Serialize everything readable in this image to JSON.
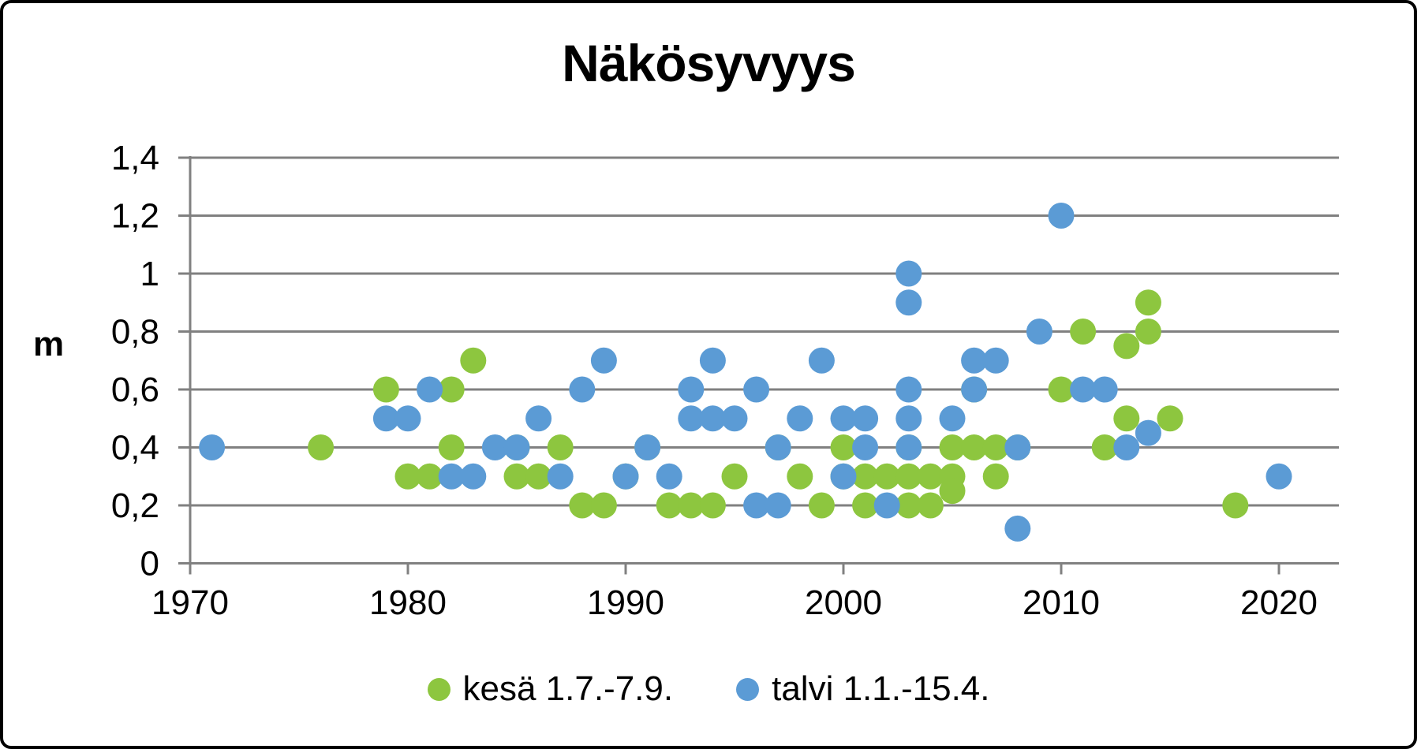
{
  "title": "Näkösyvyys",
  "y_axis": {
    "label": "m",
    "tick_labels": [
      "1,4",
      "1,2",
      "1",
      "0,8",
      "0,6",
      "0,4",
      "0,2",
      "0"
    ],
    "tick_values": [
      1.4,
      1.2,
      1.0,
      0.8,
      0.6,
      0.4,
      0.2,
      0
    ]
  },
  "x_axis": {
    "tick_labels": [
      "1970",
      "1980",
      "1990",
      "2000",
      "2010",
      "2020"
    ],
    "tick_values": [
      1970,
      1980,
      1990,
      2000,
      2010,
      2020
    ]
  },
  "legend": {
    "items": [
      {
        "label": "kesä 1.7.-7.9.",
        "color": "#8DC63F"
      },
      {
        "label": "talvi 1.1.-15.4.",
        "color": "#5B9BD5"
      }
    ]
  },
  "colors": {
    "summer": "#8DC63F",
    "winter": "#5B9BD5",
    "gridline": "#808080",
    "text": "#000000",
    "background": "#ffffff"
  },
  "chart_data": {
    "type": "scatter",
    "title": "Näkösyvyys",
    "xlabel": "",
    "ylabel": "m",
    "xlim": [
      1969,
      2023
    ],
    "ylim": [
      0,
      1.4
    ],
    "grid": "horizontal",
    "legend_position": "bottom",
    "series": [
      {
        "name": "kesä 1.7.-7.9.",
        "color": "#8DC63F",
        "points": [
          [
            1976,
            0.4
          ],
          [
            1979,
            0.6
          ],
          [
            1980,
            0.3
          ],
          [
            1981,
            0.3
          ],
          [
            1982,
            0.4
          ],
          [
            1982,
            0.6
          ],
          [
            1983,
            0.7
          ],
          [
            1985,
            0.4
          ],
          [
            1985,
            0.3
          ],
          [
            1986,
            0.3
          ],
          [
            1987,
            0.4
          ],
          [
            1988,
            0.2
          ],
          [
            1989,
            0.2
          ],
          [
            1990,
            0.3
          ],
          [
            1991,
            0.4
          ],
          [
            1992,
            0.2
          ],
          [
            1993,
            0.2
          ],
          [
            1994,
            0.2
          ],
          [
            1995,
            0.3
          ],
          [
            1997,
            0.4
          ],
          [
            1998,
            0.3
          ],
          [
            1999,
            0.2
          ],
          [
            2000,
            0.4
          ],
          [
            2000,
            0.3
          ],
          [
            2001,
            0.3
          ],
          [
            2001,
            0.2
          ],
          [
            2002,
            0.3
          ],
          [
            2003,
            0.4
          ],
          [
            2003,
            0.3
          ],
          [
            2003,
            0.2
          ],
          [
            2004,
            0.3
          ],
          [
            2004,
            0.2
          ],
          [
            2005,
            0.4
          ],
          [
            2005,
            0.3
          ],
          [
            2005,
            0.25
          ],
          [
            2006,
            0.4
          ],
          [
            2006,
            0.6
          ],
          [
            2007,
            0.4
          ],
          [
            2007,
            0.3
          ],
          [
            2008,
            0.4
          ],
          [
            2010,
            0.6
          ],
          [
            2011,
            0.8
          ],
          [
            2012,
            0.4
          ],
          [
            2013,
            0.5
          ],
          [
            2013,
            0.75
          ],
          [
            2014,
            0.8
          ],
          [
            2014,
            0.9
          ],
          [
            2015,
            0.5
          ],
          [
            2018,
            0.2
          ]
        ]
      },
      {
        "name": "talvi 1.1.-15.4.",
        "color": "#5B9BD5",
        "points": [
          [
            1971,
            0.4
          ],
          [
            1979,
            0.5
          ],
          [
            1980,
            0.5
          ],
          [
            1981,
            0.6
          ],
          [
            1982,
            0.3
          ],
          [
            1983,
            0.3
          ],
          [
            1984,
            0.4
          ],
          [
            1985,
            0.4
          ],
          [
            1986,
            0.5
          ],
          [
            1987,
            0.3
          ],
          [
            1988,
            0.6
          ],
          [
            1989,
            0.7
          ],
          [
            1990,
            0.3
          ],
          [
            1991,
            0.4
          ],
          [
            1992,
            0.3
          ],
          [
            1993,
            0.5
          ],
          [
            1993,
            0.6
          ],
          [
            1994,
            0.5
          ],
          [
            1994,
            0.7
          ],
          [
            1995,
            0.5
          ],
          [
            1996,
            0.6
          ],
          [
            1996,
            0.2
          ],
          [
            1997,
            0.2
          ],
          [
            1997,
            0.4
          ],
          [
            1998,
            0.5
          ],
          [
            1999,
            0.7
          ],
          [
            2000,
            0.5
          ],
          [
            2000,
            0.3
          ],
          [
            2001,
            0.5
          ],
          [
            2001,
            0.4
          ],
          [
            2002,
            0.2
          ],
          [
            2003,
            1.0
          ],
          [
            2003,
            0.9
          ],
          [
            2003,
            0.6
          ],
          [
            2003,
            0.5
          ],
          [
            2003,
            0.4
          ],
          [
            2005,
            0.5
          ],
          [
            2006,
            0.7
          ],
          [
            2006,
            0.6
          ],
          [
            2007,
            0.7
          ],
          [
            2008,
            0.4
          ],
          [
            2008,
            0.12
          ],
          [
            2009,
            0.8
          ],
          [
            2010,
            1.2
          ],
          [
            2011,
            0.6
          ],
          [
            2012,
            0.6
          ],
          [
            2013,
            0.4
          ],
          [
            2014,
            0.45
          ],
          [
            2020,
            0.3
          ]
        ]
      }
    ]
  }
}
